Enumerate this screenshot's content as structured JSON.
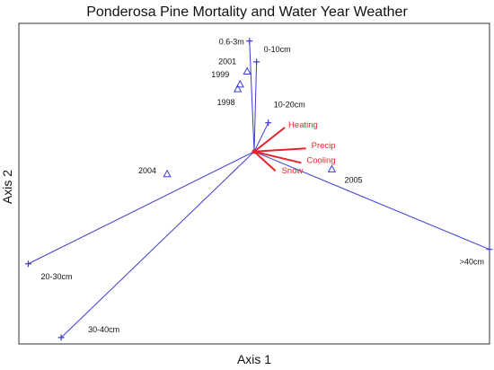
{
  "chart_data": {
    "type": "scatter",
    "title": "Ponderosa Pine Mortality and Water Year Weather",
    "xlabel": "Axis 1",
    "ylabel": "Axis 2",
    "xlim": [
      -1.0,
      1.0
    ],
    "ylim": [
      -1.0,
      1.0
    ],
    "grid": false,
    "origin": [
      0.0,
      0.2
    ],
    "size_class_vectors": {
      "color": "#3b3bd4",
      "points": [
        {
          "label": "0.6-3m",
          "x": -0.02,
          "y": 0.89
        },
        {
          "label": "0-10cm",
          "x": 0.01,
          "y": 0.76
        },
        {
          "label": "10-20cm",
          "x": 0.06,
          "y": 0.38
        },
        {
          "label": "20-30cm",
          "x": -0.96,
          "y": -0.5
        },
        {
          "label": "30-40cm",
          "x": -0.82,
          "y": -0.96
        },
        {
          "label": ">40cm",
          "x": 1.0,
          "y": -0.41
        }
      ]
    },
    "years": {
      "color": "#3b3bd4",
      "points": [
        {
          "label": "2001",
          "x": -0.03,
          "y": 0.7
        },
        {
          "label": "1999",
          "x": -0.06,
          "y": 0.62
        },
        {
          "label": "1998",
          "x": -0.07,
          "y": 0.59
        },
        {
          "label": "2004",
          "x": -0.37,
          "y": 0.06
        },
        {
          "label": "2005",
          "x": 0.33,
          "y": 0.09
        }
      ]
    },
    "weather_vectors": {
      "color": "#e8232a",
      "points": [
        {
          "label": "Heating",
          "x": 0.13,
          "y": 0.35
        },
        {
          "label": "Precip",
          "x": 0.22,
          "y": 0.22
        },
        {
          "label": "Cooling",
          "x": 0.2,
          "y": 0.13
        },
        {
          "label": "Snow",
          "x": 0.09,
          "y": 0.08
        }
      ]
    }
  }
}
